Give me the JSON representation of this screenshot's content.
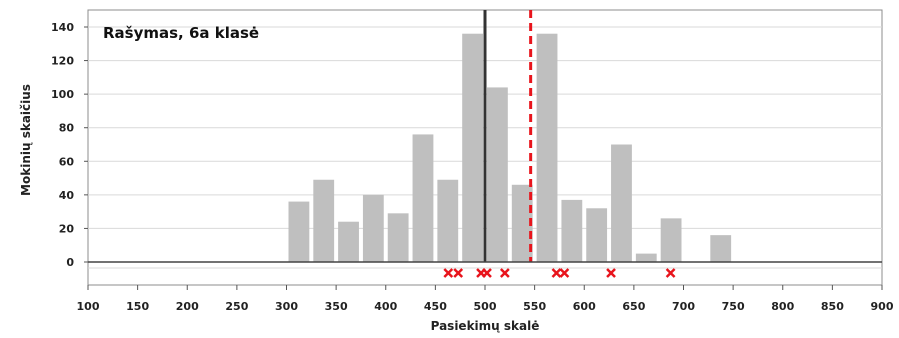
{
  "chart_data": {
    "type": "bar",
    "title": "Rašymas, 6a klasė",
    "xlabel": "Pasiekimų skalė",
    "ylabel": "Mokinių skaičius",
    "xlim": [
      100,
      900
    ],
    "ylim": [
      0,
      150
    ],
    "x_ticks": [
      100,
      150,
      200,
      250,
      300,
      350,
      400,
      450,
      500,
      550,
      600,
      650,
      700,
      750,
      800,
      850,
      900
    ],
    "y_ticks": [
      0,
      20,
      40,
      60,
      80,
      100,
      120,
      140
    ],
    "grid": true,
    "bar_width": 25,
    "bins": [
      312.5,
      337.5,
      362.5,
      387.5,
      412.5,
      437.5,
      462.5,
      487.5,
      512.5,
      537.5,
      562.5,
      587.5,
      612.5,
      637.5,
      662.5,
      687.5,
      712.5,
      737.5
    ],
    "values": [
      36,
      49,
      24,
      40,
      29,
      76,
      49,
      136,
      104,
      46,
      136,
      37,
      32,
      70,
      5,
      26,
      0,
      16
    ],
    "reference_lines": [
      {
        "x": 500,
        "color": "#333333",
        "style": "solid"
      },
      {
        "x": 546,
        "color": "#e8141c",
        "style": "dashed"
      }
    ],
    "markers": [
      463,
      473,
      496,
      502,
      520,
      572,
      580,
      627,
      687
    ],
    "colors": {
      "bar": "#bfbfbf",
      "marker": "#e8141c",
      "grid": "#d9d9d9",
      "axis": "#555555"
    }
  }
}
